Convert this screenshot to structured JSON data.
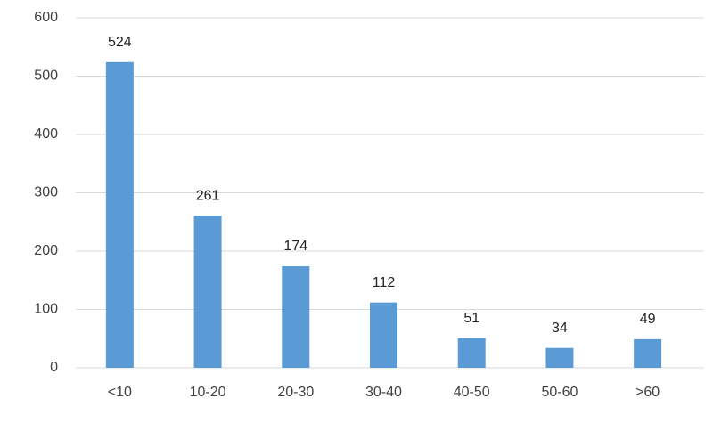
{
  "chart_data": {
    "type": "bar",
    "categories": [
      "<10",
      "10-20",
      "20-30",
      "30-40",
      "40-50",
      "50-60",
      ">60"
    ],
    "values": [
      524,
      261,
      174,
      112,
      51,
      34,
      49
    ],
    "color": "#5b9bd5",
    "ylim": [
      0,
      600
    ],
    "yticks": [
      0,
      100,
      200,
      300,
      400,
      500,
      600
    ],
    "grid": true
  }
}
